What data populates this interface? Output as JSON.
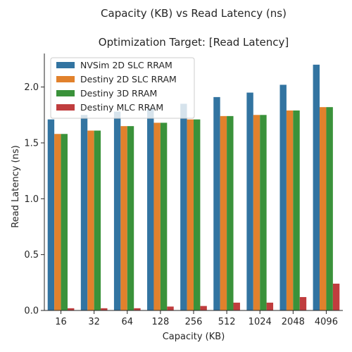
{
  "chart_data": {
    "type": "bar",
    "suptitle": "Capacity (KB) vs Read Latency (ns)",
    "title": "Optimization Target: [Read Latency]",
    "xlabel": "Capacity (KB)",
    "ylabel": "Read Latency (ns)",
    "categories": [
      "16",
      "32",
      "64",
      "128",
      "256",
      "512",
      "1024",
      "2048",
      "4096"
    ],
    "ylim": [
      0,
      2.3
    ],
    "yticks": [
      "0.0",
      "0.5",
      "1.0",
      "1.5",
      "2.0"
    ],
    "legend_position": "upper-left",
    "grid": false,
    "series": [
      {
        "name": "NVSim 2D SLC RRAM",
        "color": "#3274a1",
        "values": [
          1.71,
          1.75,
          1.78,
          1.81,
          1.85,
          1.91,
          1.95,
          2.02,
          2.2
        ]
      },
      {
        "name": "Destiny 2D SLC RRAM",
        "color": "#e1812c",
        "values": [
          1.58,
          1.61,
          1.65,
          1.68,
          1.71,
          1.74,
          1.75,
          1.79,
          1.82
        ]
      },
      {
        "name": "Destiny 3D RRAM",
        "color": "#3a923a",
        "values": [
          1.58,
          1.61,
          1.65,
          1.68,
          1.71,
          1.74,
          1.75,
          1.79,
          1.82
        ]
      },
      {
        "name": "Destiny MLC RRAM",
        "color": "#c03d3e",
        "values": [
          0.02,
          0.02,
          0.02,
          0.035,
          0.04,
          0.07,
          0.07,
          0.12,
          0.24
        ]
      }
    ]
  }
}
